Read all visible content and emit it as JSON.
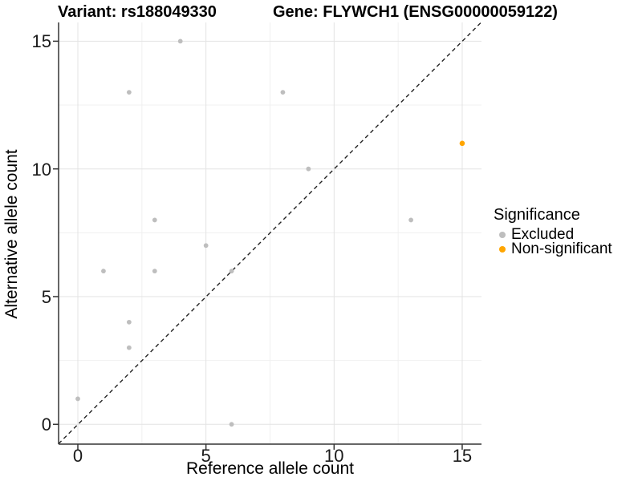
{
  "titles": {
    "variant": "Variant: rs188049330",
    "gene": "Gene: FLYWCH1 (ENSG00000059122)"
  },
  "chart_data": {
    "type": "scatter",
    "xlabel": "Reference allele count",
    "ylabel": "Alternative allele count",
    "x_ticks": [
      0,
      5,
      10,
      15
    ],
    "y_ticks": [
      0,
      5,
      10,
      15
    ],
    "x_minor_ticks": [
      2.5,
      7.5,
      12.5
    ],
    "y_minor_ticks": [
      2.5,
      7.5,
      12.5
    ],
    "xlim": [
      0,
      15
    ],
    "ylim": [
      0,
      15
    ],
    "grid": "on",
    "identity_line": {
      "style": "dashed",
      "color": "#222222"
    },
    "series": [
      {
        "name": "Excluded",
        "color": "#BEBEBE",
        "points": [
          {
            "x": 0,
            "y": 1
          },
          {
            "x": 1,
            "y": 6
          },
          {
            "x": 2,
            "y": 3
          },
          {
            "x": 2,
            "y": 4
          },
          {
            "x": 2,
            "y": 13
          },
          {
            "x": 3,
            "y": 6
          },
          {
            "x": 3,
            "y": 8
          },
          {
            "x": 4,
            "y": 15
          },
          {
            "x": 5,
            "y": 7
          },
          {
            "x": 6,
            "y": 0
          },
          {
            "x": 6,
            "y": 6
          },
          {
            "x": 8,
            "y": 13
          },
          {
            "x": 9,
            "y": 10
          },
          {
            "x": 13,
            "y": 8
          }
        ]
      },
      {
        "name": "Non-significant",
        "color": "#FFA500",
        "points": [
          {
            "x": 15,
            "y": 11
          }
        ]
      }
    ]
  },
  "legend": {
    "title": "Significance",
    "position": "right",
    "entries": [
      {
        "label": "Excluded",
        "color": "#BEBEBE"
      },
      {
        "label": "Non-significant",
        "color": "#FFA500"
      }
    ]
  },
  "style_colors": {
    "grid_major": "#E3E3E3",
    "grid_minor": "#F0F0F0",
    "axis_line": "#333333"
  }
}
